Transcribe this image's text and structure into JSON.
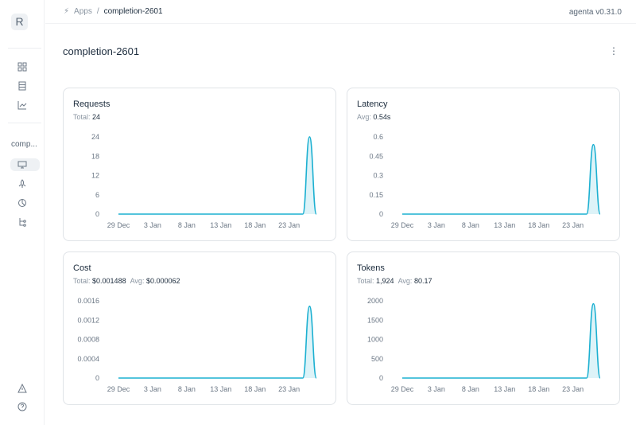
{
  "sidebar": {
    "logo": "R",
    "app_short": "comp...",
    "icons": [
      "grid-icon",
      "table-icon",
      "chart-icon",
      "monitor-icon",
      "rocket-icon",
      "analytics-icon",
      "tree-icon",
      "alert-icon",
      "help-icon"
    ]
  },
  "breadcrumb": {
    "root": "Apps",
    "separator": "/",
    "current": "completion-2601"
  },
  "version": "agenta v0.31.0",
  "page_title": "completion-2601",
  "more_icon": "⋮",
  "accent": "#1cb0d1",
  "cards": [
    {
      "title": "Requests",
      "stats": [
        {
          "label": "Total:",
          "value": "24"
        }
      ]
    },
    {
      "title": "Latency",
      "stats": [
        {
          "label": "Avg:",
          "value": "0.54s"
        }
      ]
    },
    {
      "title": "Cost",
      "stats": [
        {
          "label": "Total:",
          "value": "$0.001488"
        },
        {
          "label": "Avg:",
          "value": "$0.000062"
        }
      ]
    },
    {
      "title": "Tokens",
      "stats": [
        {
          "label": "Total:",
          "value": "1,924"
        },
        {
          "label": "Avg:",
          "value": "80.17"
        }
      ]
    }
  ],
  "chart_data": [
    {
      "type": "area",
      "x": [
        "29 Dec",
        "30 Dec",
        "31 Dec",
        "1 Jan",
        "2 Jan",
        "3 Jan",
        "4 Jan",
        "5 Jan",
        "6 Jan",
        "7 Jan",
        "8 Jan",
        "9 Jan",
        "10 Jan",
        "11 Jan",
        "12 Jan",
        "13 Jan",
        "14 Jan",
        "15 Jan",
        "16 Jan",
        "17 Jan",
        "18 Jan",
        "19 Jan",
        "20 Jan",
        "21 Jan",
        "22 Jan",
        "23 Jan",
        "24 Jan",
        "25 Jan",
        "26 Jan",
        "27 Jan"
      ],
      "values": [
        0,
        0,
        0,
        0,
        0,
        0,
        0,
        0,
        0,
        0,
        0,
        0,
        0,
        0,
        0,
        0,
        0,
        0,
        0,
        0,
        0,
        0,
        0,
        0,
        0,
        0,
        0,
        0,
        24,
        0
      ],
      "xticks": [
        "29 Dec",
        "3 Jan",
        "8 Jan",
        "13 Jan",
        "18 Jan",
        "23 Jan"
      ],
      "yticks": [
        "0",
        "6",
        "12",
        "18",
        "24"
      ],
      "ylim": [
        0,
        24
      ]
    },
    {
      "type": "area",
      "x": "same as Requests",
      "values": [
        0,
        0,
        0,
        0,
        0,
        0,
        0,
        0,
        0,
        0,
        0,
        0,
        0,
        0,
        0,
        0,
        0,
        0,
        0,
        0,
        0,
        0,
        0,
        0,
        0,
        0,
        0,
        0,
        0.54,
        0
      ],
      "xticks": [
        "29 Dec",
        "3 Jan",
        "8 Jan",
        "13 Jan",
        "18 Jan",
        "23 Jan"
      ],
      "yticks": [
        "0",
        "0.15",
        "0.3",
        "0.45",
        "0.6"
      ],
      "ylim": [
        0,
        0.6
      ]
    },
    {
      "type": "area",
      "x": "same as Requests",
      "values": [
        0,
        0,
        0,
        0,
        0,
        0,
        0,
        0,
        0,
        0,
        0,
        0,
        0,
        0,
        0,
        0,
        0,
        0,
        0,
        0,
        0,
        0,
        0,
        0,
        0,
        0,
        0,
        0,
        0.001488,
        0
      ],
      "xticks": [
        "29 Dec",
        "3 Jan",
        "8 Jan",
        "13 Jan",
        "18 Jan",
        "23 Jan"
      ],
      "yticks": [
        "0",
        "0.0004",
        "0.0008",
        "0.0012",
        "0.0016"
      ],
      "ylim": [
        0,
        0.0016
      ]
    },
    {
      "type": "area",
      "x": "same as Requests",
      "values": [
        0,
        0,
        0,
        0,
        0,
        0,
        0,
        0,
        0,
        0,
        0,
        0,
        0,
        0,
        0,
        0,
        0,
        0,
        0,
        0,
        0,
        0,
        0,
        0,
        0,
        0,
        0,
        0,
        1924,
        0
      ],
      "xticks": [
        "29 Dec",
        "3 Jan",
        "8 Jan",
        "13 Jan",
        "18 Jan",
        "23 Jan"
      ],
      "yticks": [
        "0",
        "500",
        "1000",
        "1500",
        "2000"
      ],
      "ylim": [
        0,
        2000
      ]
    }
  ]
}
